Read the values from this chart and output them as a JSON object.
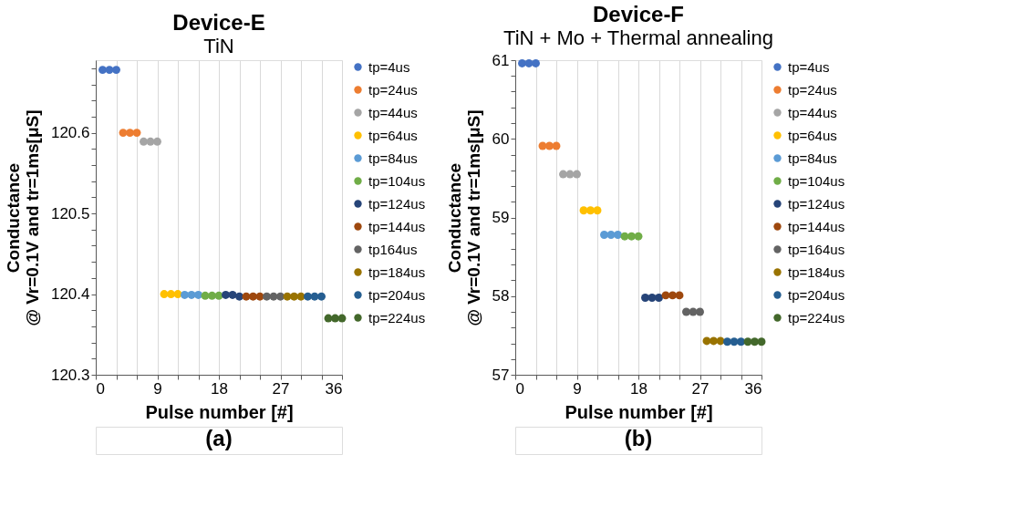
{
  "chart_data": [
    {
      "type": "scatter",
      "title": "Device-E",
      "subtitle": "TiN",
      "xlabel": "Pulse number [#]",
      "ylabel": "Conductance\n@ Vr=0.1V and tr=1ms[μS]",
      "annotations": [
        "(a)"
      ],
      "marker": "circle",
      "grid": "x",
      "legend": "right",
      "xlim": [
        0,
        36
      ],
      "xticks": [
        0,
        {
          "value": 3,
          "label": null
        },
        {
          "value": 6,
          "label": null
        },
        9,
        {
          "value": 12,
          "label": null
        },
        {
          "value": 15,
          "label": null
        },
        18,
        {
          "value": 21,
          "label": null
        },
        {
          "value": 24,
          "label": null
        },
        27,
        {
          "value": 30,
          "label": null
        },
        {
          "value": 33,
          "label": null
        },
        36
      ],
      "ylim": [
        120.3,
        120.69
      ],
      "yticks": [
        120.3,
        {
          "value": 120.32,
          "label": null
        },
        {
          "value": 120.34,
          "label": null
        },
        {
          "value": 120.36,
          "label": null
        },
        {
          "value": 120.38,
          "label": null
        },
        120.4,
        {
          "value": 120.42,
          "label": null
        },
        {
          "value": 120.44,
          "label": null
        },
        {
          "value": 120.46,
          "label": null
        },
        {
          "value": 120.48,
          "label": null
        },
        120.5,
        {
          "value": 120.52,
          "label": null
        },
        {
          "value": 120.54,
          "label": null
        },
        {
          "value": 120.56,
          "label": null
        },
        {
          "value": 120.58,
          "label": null
        },
        120.6,
        {
          "value": 120.62,
          "label": null
        },
        {
          "value": 120.64,
          "label": null
        },
        {
          "value": 120.66,
          "label": null
        },
        {
          "value": 120.68,
          "label": null
        }
      ],
      "series": [
        {
          "name": "tp=4us",
          "color": "#4472c4",
          "x": [
            1,
            2,
            3
          ],
          "values": [
            120.678,
            120.678,
            120.678
          ]
        },
        {
          "name": "tp=24us",
          "color": "#ed7d31",
          "x": [
            4,
            5,
            6
          ],
          "values": [
            120.6,
            120.6,
            120.6
          ]
        },
        {
          "name": "tp=44us",
          "color": "#a5a5a5",
          "x": [
            7,
            8,
            9
          ],
          "values": [
            120.589,
            120.589,
            120.589
          ]
        },
        {
          "name": "tp=64us",
          "color": "#ffc000",
          "x": [
            10,
            11,
            12
          ],
          "values": [
            120.4,
            120.4,
            120.4
          ]
        },
        {
          "name": "tp=84us",
          "color": "#5b9bd5",
          "x": [
            13,
            14,
            15
          ],
          "values": [
            120.399,
            120.399,
            120.399
          ]
        },
        {
          "name": "tp=104us",
          "color": "#70ad47",
          "x": [
            16,
            17,
            18
          ],
          "values": [
            120.398,
            120.398,
            120.398
          ]
        },
        {
          "name": "tp=124us",
          "color": "#264478",
          "x": [
            19,
            20,
            21
          ],
          "values": [
            120.399,
            120.399,
            120.397
          ]
        },
        {
          "name": "tp=144us",
          "color": "#9e480e",
          "x": [
            22,
            23,
            24
          ],
          "values": [
            120.397,
            120.397,
            120.397
          ]
        },
        {
          "name": "tp164us",
          "color": "#636363",
          "x": [
            25,
            26,
            27
          ],
          "values": [
            120.397,
            120.397,
            120.397
          ]
        },
        {
          "name": "tp=184us",
          "color": "#997300",
          "x": [
            28,
            29,
            30
          ],
          "values": [
            120.397,
            120.397,
            120.397
          ]
        },
        {
          "name": "tp=204us",
          "color": "#255e91",
          "x": [
            31,
            32,
            33
          ],
          "values": [
            120.397,
            120.397,
            120.397
          ]
        },
        {
          "name": "tp=224us",
          "color": "#43682b",
          "x": [
            34,
            35,
            36
          ],
          "values": [
            120.37,
            120.37,
            120.37
          ]
        }
      ]
    },
    {
      "type": "scatter",
      "title": "Device-F",
      "subtitle": "TiN + Mo + Thermal annealing",
      "xlabel": "Pulse number [#]",
      "ylabel": "Conductance\n@ Vr=0.1V and tr=1ms[μS]",
      "annotations": [
        "(b)"
      ],
      "marker": "circle",
      "grid": "x",
      "legend": "right",
      "xlim": [
        0,
        36
      ],
      "xticks": [
        0,
        {
          "value": 3,
          "label": null
        },
        {
          "value": 6,
          "label": null
        },
        9,
        {
          "value": 12,
          "label": null
        },
        {
          "value": 15,
          "label": null
        },
        18,
        {
          "value": 21,
          "label": null
        },
        {
          "value": 24,
          "label": null
        },
        27,
        {
          "value": 30,
          "label": null
        },
        {
          "value": 33,
          "label": null
        },
        36
      ],
      "ylim": [
        57,
        61
      ],
      "yticks": [
        57,
        {
          "value": 57.2,
          "label": null
        },
        {
          "value": 57.4,
          "label": null
        },
        {
          "value": 57.6,
          "label": null
        },
        {
          "value": 57.8,
          "label": null
        },
        58,
        {
          "value": 58.2,
          "label": null
        },
        {
          "value": 58.4,
          "label": null
        },
        {
          "value": 58.6,
          "label": null
        },
        {
          "value": 58.8,
          "label": null
        },
        59,
        {
          "value": 59.2,
          "label": null
        },
        {
          "value": 59.4,
          "label": null
        },
        {
          "value": 59.6,
          "label": null
        },
        {
          "value": 59.8,
          "label": null
        },
        60,
        {
          "value": 60.2,
          "label": null
        },
        {
          "value": 60.4,
          "label": null
        },
        {
          "value": 60.6,
          "label": null
        },
        {
          "value": 60.8,
          "label": null
        },
        61
      ],
      "series": [
        {
          "name": "tp=4us",
          "color": "#4472c4",
          "x": [
            1,
            2,
            3
          ],
          "values": [
            60.96,
            60.96,
            60.96
          ]
        },
        {
          "name": "tp=24us",
          "color": "#ed7d31",
          "x": [
            4,
            5,
            6
          ],
          "values": [
            59.91,
            59.91,
            59.91
          ]
        },
        {
          "name": "tp=44us",
          "color": "#a5a5a5",
          "x": [
            7,
            8,
            9
          ],
          "values": [
            59.55,
            59.55,
            59.55
          ]
        },
        {
          "name": "tp=64us",
          "color": "#ffc000",
          "x": [
            10,
            11,
            12
          ],
          "values": [
            59.09,
            59.09,
            59.09
          ]
        },
        {
          "name": "tp=84us",
          "color": "#5b9bd5",
          "x": [
            13,
            14,
            15
          ],
          "values": [
            58.78,
            58.78,
            58.78
          ]
        },
        {
          "name": "tp=104us",
          "color": "#70ad47",
          "x": [
            16,
            17,
            18
          ],
          "values": [
            58.76,
            58.76,
            58.76
          ]
        },
        {
          "name": "tp=124us",
          "color": "#264478",
          "x": [
            19,
            20,
            21
          ],
          "values": [
            57.98,
            57.98,
            57.98
          ]
        },
        {
          "name": "tp=144us",
          "color": "#9e480e",
          "x": [
            22,
            23,
            24
          ],
          "values": [
            58.01,
            58.01,
            58.01
          ]
        },
        {
          "name": "tp=164us",
          "color": "#636363",
          "x": [
            25,
            26,
            27
          ],
          "values": [
            57.8,
            57.8,
            57.8
          ]
        },
        {
          "name": "tp=184us",
          "color": "#997300",
          "x": [
            28,
            29,
            30
          ],
          "values": [
            57.43,
            57.43,
            57.43
          ]
        },
        {
          "name": "tp=204us",
          "color": "#255e91",
          "x": [
            31,
            32,
            33
          ],
          "values": [
            57.42,
            57.42,
            57.42
          ]
        },
        {
          "name": "tp=224us",
          "color": "#43682b",
          "x": [
            34,
            35,
            36
          ],
          "values": [
            57.42,
            57.42,
            57.42
          ]
        }
      ]
    }
  ]
}
